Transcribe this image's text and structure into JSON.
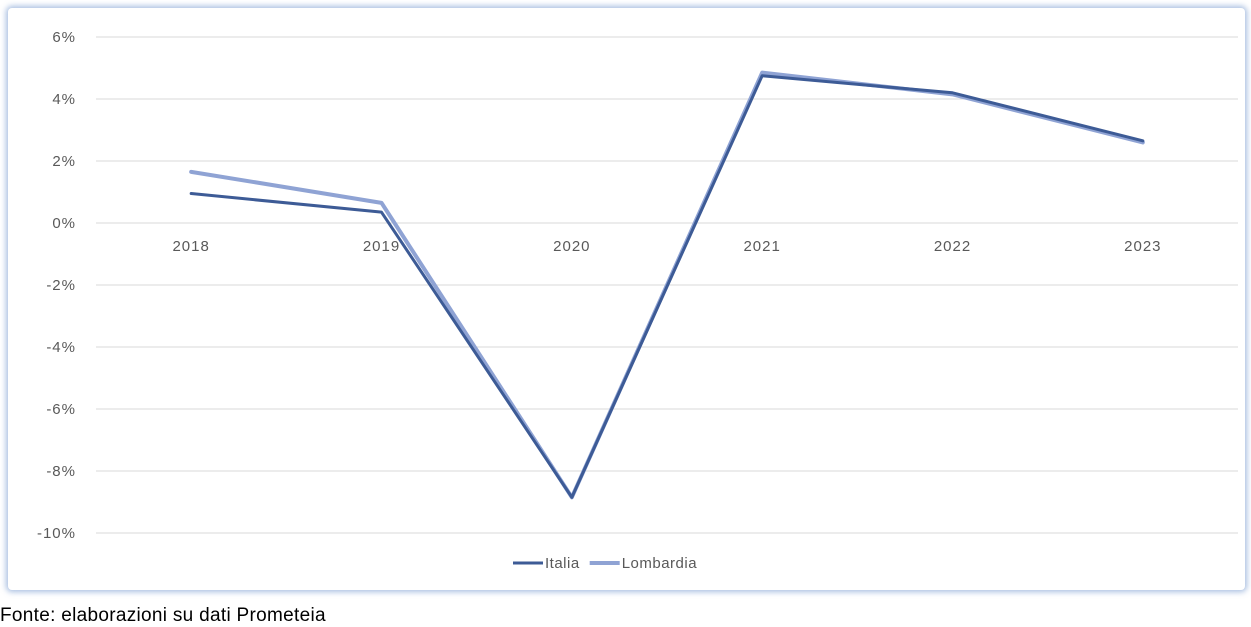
{
  "source_note": "Fonte: elaborazioni su dati Prometeia",
  "chart_data": {
    "type": "line",
    "title": "",
    "xlabel": "",
    "ylabel": "",
    "categories": [
      "2018",
      "2019",
      "2020",
      "2021",
      "2022",
      "2023"
    ],
    "y_tick_labels": [
      "6%",
      "4%",
      "2%",
      "0%",
      "-2%",
      "-4%",
      "-6%",
      "-8%",
      "-10%"
    ],
    "ylim": [
      -10,
      6
    ],
    "y_unit": "%",
    "grid": true,
    "legend_position": "bottom",
    "series": [
      {
        "name": "Italia",
        "color": "#3d5b96",
        "values": [
          0.95,
          0.35,
          -8.85,
          4.75,
          4.2,
          2.65
        ]
      },
      {
        "name": "Lombardia",
        "color": "#8fa3d4",
        "values": [
          1.65,
          0.65,
          -8.85,
          4.85,
          4.15,
          2.6
        ]
      }
    ]
  }
}
